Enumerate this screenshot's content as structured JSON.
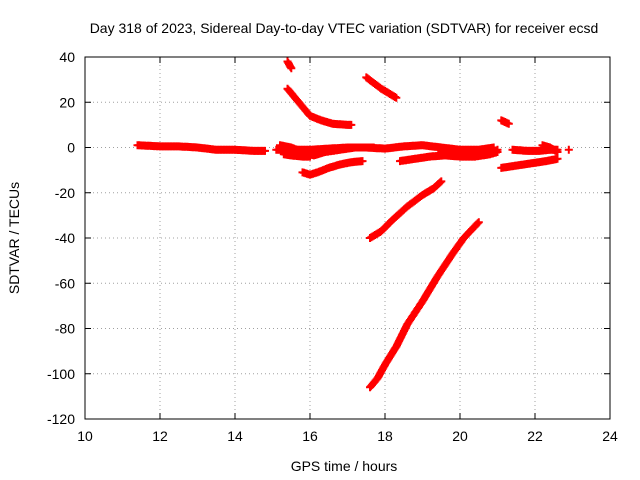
{
  "chart_data": {
    "type": "scatter",
    "title": "Day 318 of 2023, Sidereal Day-to-day VTEC variation (SDTVAR) for receiver ecsd",
    "xlabel": "GPS time / hours",
    "ylabel": "SDTVAR / TECUs",
    "xlim": [
      10,
      24
    ],
    "ylim": [
      -120,
      40
    ],
    "xticks": [
      10,
      12,
      14,
      16,
      18,
      20,
      22,
      24
    ],
    "yticks": [
      -120,
      -100,
      -80,
      -60,
      -40,
      -20,
      0,
      20,
      40
    ],
    "grid": true,
    "marker": "plus",
    "marker_color": "#ff0000",
    "series": [
      {
        "x": [
          11.4,
          12.0,
          12.5,
          13.0,
          13.5,
          14.0,
          14.5,
          14.8
        ],
        "y": [
          1,
          0.5,
          0.5,
          0,
          -1,
          -1,
          -1.5,
          -1.5
        ]
      },
      {
        "x": [
          15.1,
          15.5,
          16.0,
          16.5,
          17.0,
          17.5,
          18.0,
          18.5,
          19.0,
          19.5,
          20.0,
          20.5,
          20.9
        ],
        "y": [
          -1,
          -1,
          -1,
          -0.5,
          0,
          0,
          -0.5,
          0.5,
          1,
          0,
          -1,
          -1,
          0
        ]
      },
      {
        "x": [
          15.2,
          15.5,
          15.8,
          16.1,
          16.4,
          16.8,
          17.2,
          17.5,
          17.7
        ],
        "y": [
          1,
          0,
          -2,
          -3.5,
          -2,
          -1,
          0,
          0,
          0
        ]
      },
      {
        "x": [
          15.3,
          15.5,
          15.8,
          16.0
        ],
        "y": [
          -3,
          -3.5,
          -4,
          -4
        ]
      },
      {
        "x": [
          15.4,
          15.5
        ],
        "y": [
          38,
          35
        ]
      },
      {
        "x": [
          15.4,
          15.6,
          15.8,
          16.0,
          16.3,
          16.6,
          17.0,
          17.1
        ],
        "y": [
          26,
          22,
          18,
          14,
          12,
          10.5,
          10,
          10
        ]
      },
      {
        "x": [
          15.8,
          16.0,
          16.2,
          16.5,
          16.8,
          17.1,
          17.4
        ],
        "y": [
          -11,
          -12,
          -11,
          -9,
          -7.5,
          -6.5,
          -6
        ]
      },
      {
        "x": [
          17.5,
          17.7,
          17.9,
          18.1,
          18.3
        ],
        "y": [
          31,
          28.5,
          26,
          24,
          22
        ]
      },
      {
        "x": [
          17.6,
          17.9,
          18.2,
          18.6,
          19.0,
          19.3,
          19.5
        ],
        "y": [
          -40,
          -37,
          -32,
          -26,
          -21,
          -18,
          -15
        ]
      },
      {
        "x": [
          17.6,
          17.8,
          18.0,
          18.3,
          18.6,
          19.0,
          19.4,
          19.8,
          20.1,
          20.5
        ],
        "y": [
          -106,
          -102,
          -96,
          -88,
          -78,
          -68,
          -57,
          -47,
          -40,
          -33
        ]
      },
      {
        "x": [
          18.4,
          18.8,
          19.2,
          19.6,
          20.0,
          20.4,
          20.8,
          21.0
        ],
        "y": [
          -6,
          -5,
          -4,
          -3.5,
          -4,
          -4,
          -3,
          -2
        ]
      },
      {
        "x": [
          19.5,
          20.0,
          20.5,
          20.9,
          21.0
        ],
        "y": [
          -2,
          -2.5,
          -3,
          -2,
          -1
        ]
      },
      {
        "x": [
          21.1,
          21.3
        ],
        "y": [
          12,
          10.5
        ]
      },
      {
        "x": [
          21.1,
          21.5,
          21.9,
          22.3,
          22.6
        ],
        "y": [
          -9,
          -8,
          -7,
          -6,
          -5
        ]
      },
      {
        "x": [
          21.4,
          21.8,
          22.1,
          22.4,
          22.6
        ],
        "y": [
          -1,
          -1.5,
          -1.5,
          -1,
          -1
        ]
      },
      {
        "x": [
          22.2,
          22.4,
          22.6
        ],
        "y": [
          1,
          0,
          -2
        ]
      },
      {
        "x": [
          22.9
        ],
        "y": [
          -1
        ]
      }
    ]
  }
}
